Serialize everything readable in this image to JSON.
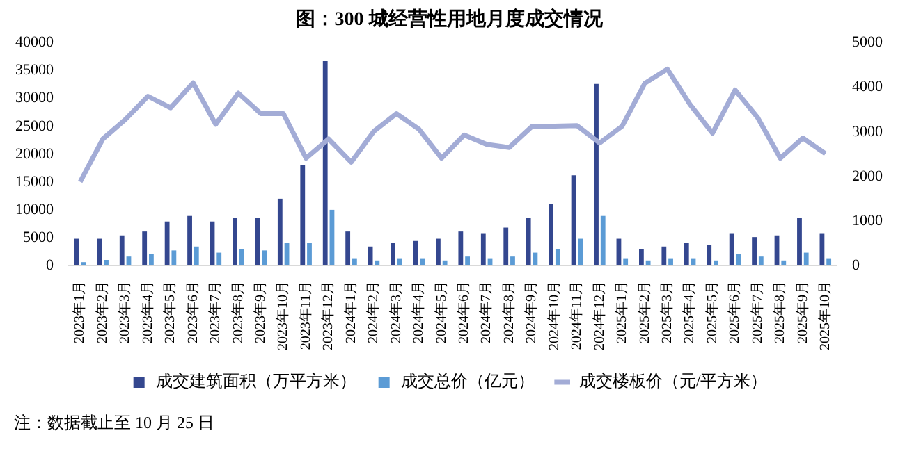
{
  "chart_data": {
    "type": "bar",
    "title": "图：300 城经营性用地月度成交情况",
    "categories": [
      "2023年1月",
      "2023年2月",
      "2023年3月",
      "2023年4月",
      "2023年5月",
      "2023年6月",
      "2023年7月",
      "2023年8月",
      "2023年9月",
      "2023年10月",
      "2023年11月",
      "2023年12月",
      "2024年1月",
      "2024年2月",
      "2024年3月",
      "2024年4月",
      "2024年5月",
      "2024年6月",
      "2024年7月",
      "2024年8月",
      "2024年9月",
      "2024年10月",
      "2024年11月",
      "2024年12月",
      "2025年1月",
      "2025年2月",
      "2025年3月",
      "2025年4月",
      "2025年5月",
      "2025年6月",
      "2025年7月",
      "2025年8月",
      "2025年9月",
      "2025年10月"
    ],
    "series": [
      {
        "name": "成交建筑面积（万平方米）",
        "color": "#34478f",
        "values": [
          4800,
          4800,
          5400,
          6100,
          7900,
          8900,
          7900,
          8600,
          8600,
          12000,
          18000,
          36700,
          6100,
          3400,
          4100,
          4400,
          4800,
          6100,
          5800,
          6800,
          8600,
          11000,
          16200,
          32600,
          4800,
          3000,
          3400,
          4100,
          3700,
          5800,
          5100,
          5400,
          8600,
          5800
        ]
      },
      {
        "name": "成交总价（亿元）",
        "color": "#5b9bd5",
        "values": [
          600,
          1000,
          1600,
          2000,
          2700,
          3400,
          2300,
          3000,
          2700,
          4100,
          4100,
          10000,
          1300,
          900,
          1300,
          1300,
          900,
          1600,
          1300,
          1600,
          2300,
          3000,
          4800,
          8900,
          1300,
          900,
          1300,
          1300,
          900,
          2000,
          1600,
          900,
          2300,
          1300
        ]
      },
      {
        "name": "成交楼板价（元/平方米）",
        "type": "line",
        "axis": "y2",
        "color": "#a3acd6",
        "values": [
          1880,
          2840,
          3280,
          3800,
          3540,
          4100,
          3170,
          3870,
          3410,
          3410,
          2410,
          2840,
          2320,
          3010,
          3410,
          3060,
          2410,
          2930,
          2720,
          2650,
          3120,
          3130,
          3140,
          2750,
          3130,
          4090,
          4410,
          3620,
          2970,
          3940,
          3320,
          2410,
          2860,
          2510
        ]
      }
    ],
    "ylim": [
      0,
      40000
    ],
    "yticks": [
      0,
      5000,
      10000,
      15000,
      20000,
      25000,
      30000,
      35000,
      40000
    ],
    "y2lim": [
      0,
      5000
    ],
    "y2ticks": [
      0,
      1000,
      2000,
      3000,
      4000,
      5000
    ],
    "marker": "none",
    "legend": "bottom",
    "annotations": [
      "注：数据截止至 10 月 25 日"
    ]
  }
}
